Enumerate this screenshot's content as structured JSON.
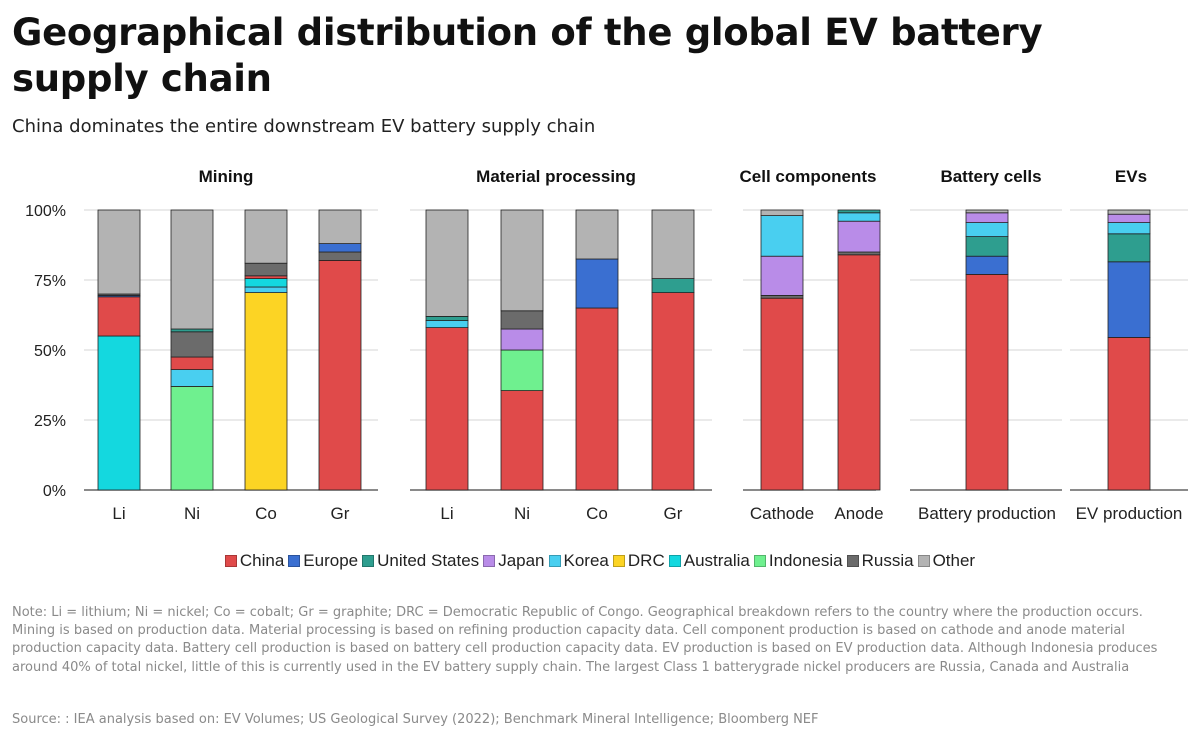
{
  "title": "Geographical distribution of the global EV battery supply chain",
  "subtitle": "China dominates the entire downstream EV battery supply chain",
  "note": "Note: Li = lithium; Ni = nickel; Co = cobalt; Gr = graphite; DRC = Democratic Republic of Congo. Geographical breakdown refers to the country where the production occurs. Mining is based on production data. Material processing is based on refining production capacity data. Cell component production is based on cathode and anode material production capacity data. Battery cell production is based on battery cell production capacity data. EV production is based on EV production data. Although Indonesia produces around 40% of total nickel, little of this is currently used in the EV battery supply chain. The largest Class 1 batterygrade nickel producers are Russia, Canada and Australia",
  "source": "Source: : IEA analysis based on: EV Volumes; US Geological Survey (2022); Benchmark Mineral Intelligence; Bloomberg NEF",
  "legend": [
    {
      "name": "China",
      "color": "#e04a4a"
    },
    {
      "name": "Europe",
      "color": "#3a6fd1"
    },
    {
      "name": "United States",
      "color": "#2e9e8f"
    },
    {
      "name": "Japan",
      "color": "#b98ce8"
    },
    {
      "name": "Korea",
      "color": "#49cff0"
    },
    {
      "name": "DRC",
      "color": "#fcd424"
    },
    {
      "name": "Australia",
      "color": "#14d8df"
    },
    {
      "name": "Indonesia",
      "color": "#6ff08f"
    },
    {
      "name": "Russia",
      "color": "#6b6b6b"
    },
    {
      "name": "Other",
      "color": "#b3b3b3"
    }
  ],
  "chart_data": {
    "type": "bar",
    "stacked": true,
    "y_ticks": [
      "100%",
      "75%",
      "50%",
      "25%",
      "0%"
    ],
    "ylim": [
      0,
      100
    ],
    "grid": true,
    "legend_position": "bottom",
    "panels": [
      {
        "title": "Mining",
        "categories": [
          "Li",
          "Ni",
          "Co",
          "Gr"
        ],
        "stacks": [
          [
            {
              "series": "Australia",
              "value": 55
            },
            {
              "series": "China",
              "value": 14
            },
            {
              "series": "Europe",
              "value": 0.5
            },
            {
              "series": "Russia",
              "value": 0.5
            },
            {
              "series": "Other",
              "value": 30
            }
          ],
          [
            {
              "series": "Indonesia",
              "value": 37
            },
            {
              "series": "Korea",
              "value": 6
            },
            {
              "series": "China",
              "value": 4.5
            },
            {
              "series": "Russia",
              "value": 9
            },
            {
              "series": "United States",
              "value": 1
            },
            {
              "series": "Other",
              "value": 42.5
            }
          ],
          [
            {
              "series": "DRC",
              "value": 70.5
            },
            {
              "series": "Korea",
              "value": 2
            },
            {
              "series": "Australia",
              "value": 3
            },
            {
              "series": "China",
              "value": 1
            },
            {
              "series": "Russia",
              "value": 4.5
            },
            {
              "series": "Other",
              "value": 19
            }
          ],
          [
            {
              "series": "China",
              "value": 82
            },
            {
              "series": "Russia",
              "value": 3
            },
            {
              "series": "Europe",
              "value": 3
            },
            {
              "series": "Other",
              "value": 12
            }
          ]
        ]
      },
      {
        "title": "Material processing",
        "categories": [
          "Li",
          "Ni",
          "Co",
          "Gr"
        ],
        "stacks": [
          [
            {
              "series": "China",
              "value": 58
            },
            {
              "series": "Korea",
              "value": 2.5
            },
            {
              "series": "United States",
              "value": 1.5
            },
            {
              "series": "Other",
              "value": 38
            }
          ],
          [
            {
              "series": "China",
              "value": 35.5
            },
            {
              "series": "Indonesia",
              "value": 14.5
            },
            {
              "series": "Japan",
              "value": 7.5
            },
            {
              "series": "Russia",
              "value": 6.5
            },
            {
              "series": "Other",
              "value": 36
            }
          ],
          [
            {
              "series": "China",
              "value": 65
            },
            {
              "series": "Europe",
              "value": 17.5
            },
            {
              "series": "Other",
              "value": 17.5
            }
          ],
          [
            {
              "series": "China",
              "value": 70.5
            },
            {
              "series": "United States",
              "value": 5
            },
            {
              "series": "Other",
              "value": 24.5
            }
          ]
        ]
      },
      {
        "title": "Cell components",
        "categories": [
          "Cathode",
          "Anode"
        ],
        "stacks": [
          [
            {
              "series": "China",
              "value": 68.5
            },
            {
              "series": "Russia",
              "value": 1
            },
            {
              "series": "Japan",
              "value": 14
            },
            {
              "series": "Korea",
              "value": 14.5
            },
            {
              "series": "Other",
              "value": 2
            }
          ],
          [
            {
              "series": "China",
              "value": 84
            },
            {
              "series": "Russia",
              "value": 1
            },
            {
              "series": "Japan",
              "value": 11
            },
            {
              "series": "Korea",
              "value": 3
            },
            {
              "series": "United States",
              "value": 1
            }
          ]
        ]
      },
      {
        "title": "Battery cells",
        "categories": [
          "Battery production"
        ],
        "stacks": [
          [
            {
              "series": "China",
              "value": 77
            },
            {
              "series": "Europe",
              "value": 6.5
            },
            {
              "series": "United States",
              "value": 7
            },
            {
              "series": "Korea",
              "value": 5
            },
            {
              "series": "Japan",
              "value": 3.5
            },
            {
              "series": "Other",
              "value": 1
            }
          ]
        ]
      },
      {
        "title": "EVs",
        "categories": [
          "EV production"
        ],
        "stacks": [
          [
            {
              "series": "China",
              "value": 54.5
            },
            {
              "series": "Europe",
              "value": 27
            },
            {
              "series": "United States",
              "value": 10
            },
            {
              "series": "Korea",
              "value": 4
            },
            {
              "series": "Japan",
              "value": 3
            },
            {
              "series": "Other",
              "value": 1.5
            }
          ]
        ]
      }
    ]
  }
}
